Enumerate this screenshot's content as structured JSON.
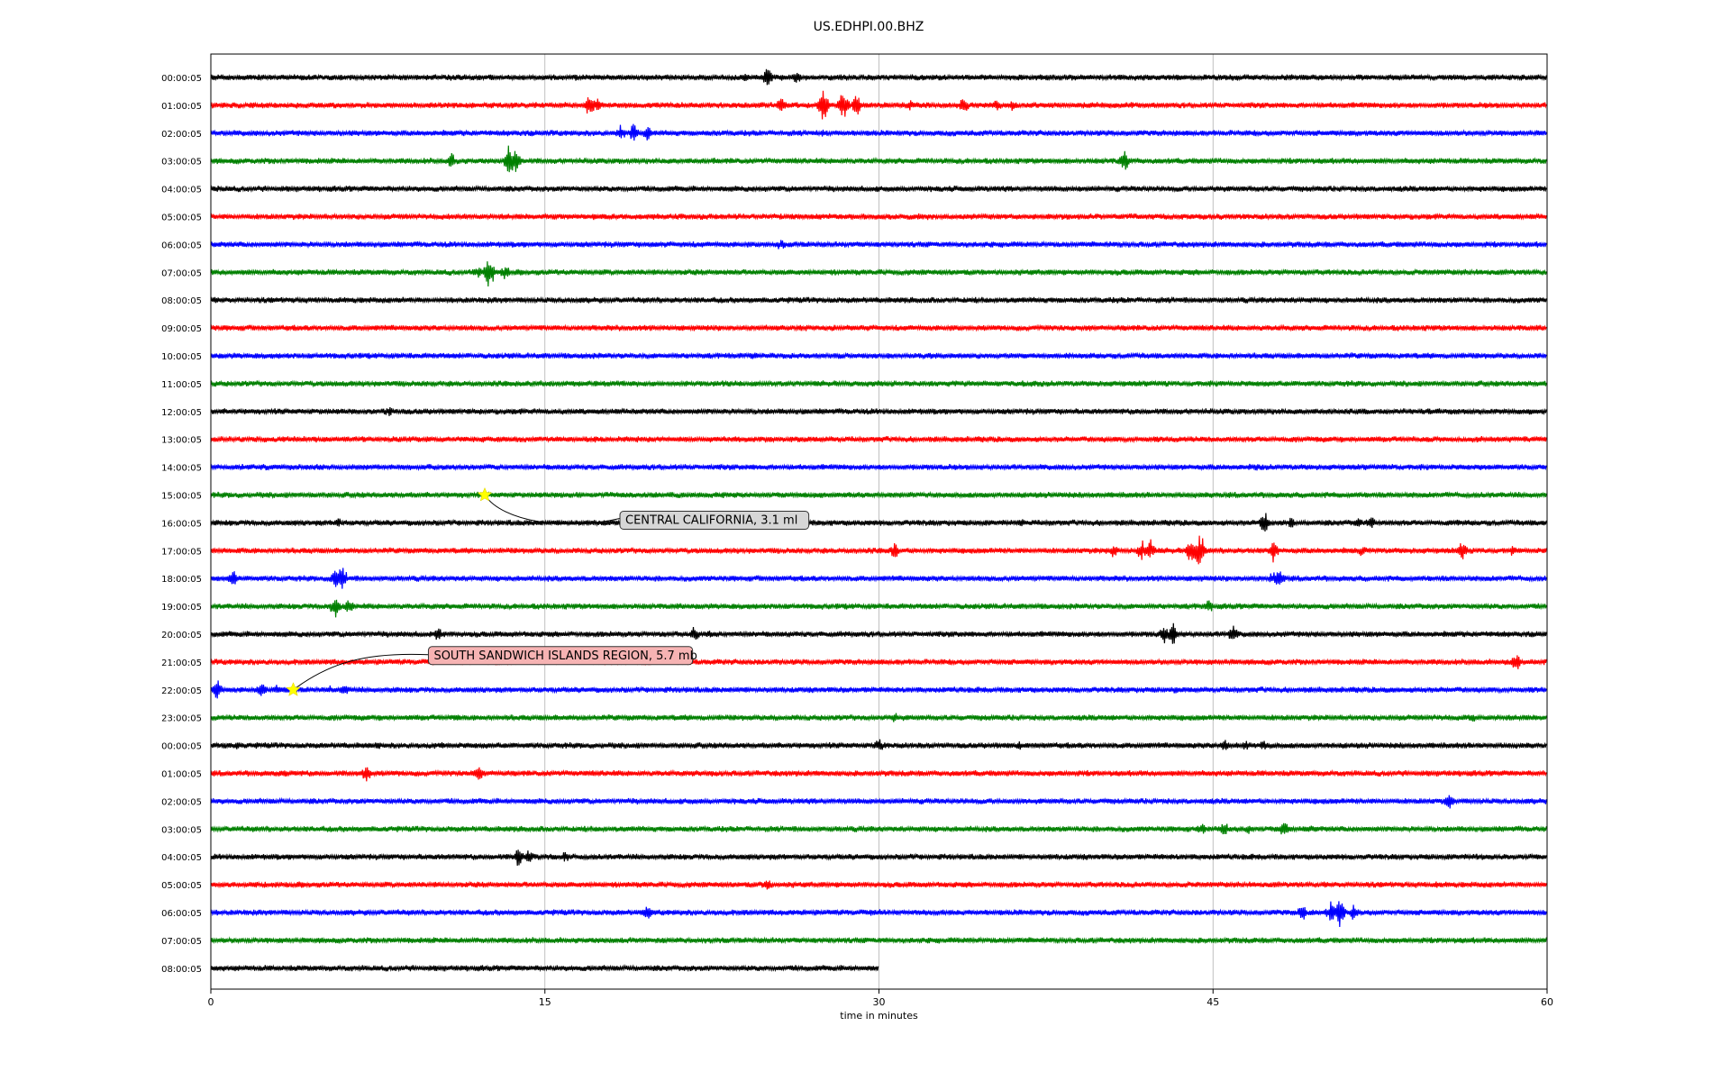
{
  "chart_data": {
    "type": "line",
    "title": "US.EDHPI.00.BHZ",
    "xlabel": "time in minutes",
    "xlim": [
      0,
      60
    ],
    "x_ticks": [
      0,
      15,
      30,
      45,
      60
    ],
    "x_tick_labels": [
      "0",
      "15",
      "30",
      "45",
      "60"
    ],
    "grid_vertical": true,
    "row_colors": [
      "#000000",
      "#ff0000",
      "#0000ff",
      "#008000"
    ],
    "rows": [
      {
        "label": "00:00:05",
        "end": 60,
        "events": [
          [
            24,
            8
          ],
          [
            25,
            14
          ],
          [
            26.3,
            10
          ]
        ]
      },
      {
        "label": "01:00:05",
        "end": 60,
        "events": [
          [
            13.6,
            6
          ],
          [
            17,
            18
          ],
          [
            17.4,
            10
          ],
          [
            25.6,
            12
          ],
          [
            27.5,
            24
          ],
          [
            28.4,
            20
          ],
          [
            29,
            16
          ],
          [
            31.4,
            8
          ],
          [
            33.8,
            12
          ],
          [
            35.3,
            10
          ],
          [
            36,
            8
          ]
        ]
      },
      {
        "label": "02:00:05",
        "end": 60,
        "events": [
          [
            18.4,
            10
          ],
          [
            19,
            14
          ],
          [
            19.6,
            10
          ],
          [
            27.5,
            6
          ]
        ]
      },
      {
        "label": "03:00:05",
        "end": 60,
        "events": [
          [
            10.8,
            10
          ],
          [
            13.4,
            22
          ],
          [
            13.7,
            18
          ],
          [
            22.6,
            5
          ],
          [
            41,
            14
          ]
        ]
      },
      {
        "label": "04:00:05",
        "end": 60,
        "events": [
          [
            0.2,
            6
          ],
          [
            45.1,
            5
          ]
        ]
      },
      {
        "label": "05:00:05",
        "end": 60,
        "events": []
      },
      {
        "label": "06:00:05",
        "end": 60,
        "events": [
          [
            25.6,
            8
          ],
          [
            20,
            4
          ]
        ]
      },
      {
        "label": "07:00:05",
        "end": 60,
        "events": [
          [
            12,
            10
          ],
          [
            12.5,
            22
          ],
          [
            13.2,
            10
          ]
        ]
      },
      {
        "label": "08:00:05",
        "end": 60,
        "events": []
      },
      {
        "label": "09:00:05",
        "end": 60,
        "events": []
      },
      {
        "label": "10:00:05",
        "end": 60,
        "events": []
      },
      {
        "label": "11:00:05",
        "end": 60,
        "events": []
      },
      {
        "label": "12:00:05",
        "end": 60,
        "events": [
          [
            8,
            8
          ]
        ]
      },
      {
        "label": "13:00:05",
        "end": 60,
        "events": []
      },
      {
        "label": "14:00:05",
        "end": 60,
        "events": [
          [
            47,
            5
          ],
          [
            53,
            5
          ],
          [
            57,
            5
          ]
        ]
      },
      {
        "label": "15:00:05",
        "end": 60,
        "events": [
          [
            16,
            4
          ]
        ]
      },
      {
        "label": "16:00:05",
        "end": 60,
        "events": [
          [
            5.7,
            8
          ],
          [
            36.4,
            7
          ],
          [
            47.3,
            16
          ],
          [
            48.5,
            8
          ],
          [
            51.5,
            8
          ],
          [
            52.1,
            10
          ],
          [
            56,
            6
          ]
        ]
      },
      {
        "label": "17:00:05",
        "end": 60,
        "events": [
          [
            30.7,
            12
          ],
          [
            40.5,
            10
          ],
          [
            41.8,
            14
          ],
          [
            42.2,
            16
          ],
          [
            44,
            20
          ],
          [
            44.4,
            24
          ],
          [
            47.7,
            14
          ],
          [
            51.7,
            8
          ],
          [
            56.2,
            14
          ],
          [
            58.5,
            8
          ]
        ]
      },
      {
        "label": "18:00:05",
        "end": 60,
        "events": [
          [
            1,
            12
          ],
          [
            5.6,
            18
          ],
          [
            5.9,
            16
          ],
          [
            47.7,
            10
          ],
          [
            48,
            14
          ]
        ]
      },
      {
        "label": "19:00:05",
        "end": 60,
        "events": [
          [
            5.6,
            16
          ],
          [
            6.2,
            10
          ],
          [
            44.8,
            10
          ]
        ]
      },
      {
        "label": "20:00:05",
        "end": 60,
        "events": [
          [
            10.2,
            10
          ],
          [
            21.7,
            12
          ],
          [
            22.3,
            6
          ],
          [
            42.8,
            12
          ],
          [
            43.2,
            16
          ],
          [
            45.9,
            14
          ]
        ]
      },
      {
        "label": "21:00:05",
        "end": 60,
        "events": [
          [
            58.6,
            12
          ]
        ]
      },
      {
        "label": "22:00:05",
        "end": 60,
        "events": [
          [
            0.3,
            14
          ],
          [
            2.3,
            12
          ],
          [
            3,
            8
          ],
          [
            5.3,
            6
          ],
          [
            6,
            8
          ],
          [
            43.3,
            5
          ]
        ]
      },
      {
        "label": "23:00:05",
        "end": 60,
        "events": [
          [
            11,
            6
          ],
          [
            30.7,
            8
          ],
          [
            56.6,
            8
          ]
        ]
      },
      {
        "label": "00:00:05",
        "end": 60,
        "events": [
          [
            1.2,
            6
          ],
          [
            7.5,
            6
          ],
          [
            10.3,
            6
          ],
          [
            30,
            10
          ],
          [
            36.3,
            6
          ],
          [
            45.5,
            10
          ],
          [
            46.5,
            8
          ],
          [
            47.3,
            8
          ]
        ]
      },
      {
        "label": "01:00:05",
        "end": 60,
        "events": [
          [
            3.3,
            6
          ],
          [
            7,
            12
          ],
          [
            12,
            12
          ],
          [
            22.5,
            4
          ]
        ]
      },
      {
        "label": "02:00:05",
        "end": 60,
        "events": [
          [
            55.6,
            10
          ]
        ]
      },
      {
        "label": "03:00:05",
        "end": 60,
        "events": [
          [
            44.5,
            10
          ],
          [
            45.5,
            10
          ],
          [
            46.6,
            8
          ],
          [
            48.2,
            12
          ],
          [
            49.5,
            6
          ]
        ]
      },
      {
        "label": "04:00:05",
        "end": 60,
        "events": [
          [
            13.8,
            14
          ],
          [
            14.3,
            12
          ],
          [
            15.9,
            8
          ]
        ]
      },
      {
        "label": "05:00:05",
        "end": 60,
        "events": [
          [
            25,
            10
          ],
          [
            55,
            5
          ]
        ]
      },
      {
        "label": "06:00:05",
        "end": 60,
        "events": [
          [
            19.6,
            12
          ],
          [
            49,
            12
          ],
          [
            50.3,
            14
          ],
          [
            50.7,
            22
          ],
          [
            51.3,
            10
          ]
        ]
      },
      {
        "label": "07:00:05",
        "end": 60,
        "events": []
      },
      {
        "label": "08:00:05",
        "end": 30,
        "events": []
      }
    ],
    "annotations": [
      {
        "text": "CENTRAL CALIFORNIA, 3.1 ml",
        "row": 15,
        "x": 12.3,
        "box": "gray"
      },
      {
        "text": "SOUTH SANDWICH ISLANDS REGION, 5.7 mb",
        "row": 22,
        "x": 3.7,
        "box": "red"
      }
    ],
    "marker_color": "#ffff00"
  }
}
